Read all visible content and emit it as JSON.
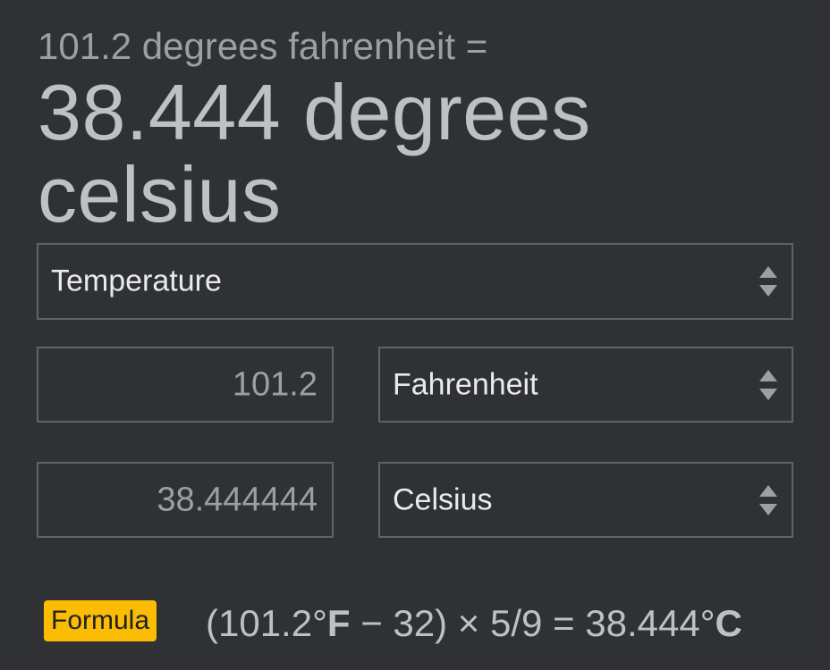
{
  "header": {
    "subtitle": "101.2 degrees fahrenheit =",
    "result_line1": "38.444 degrees",
    "result_line2": "celsius"
  },
  "unit_type": {
    "selected": "Temperature",
    "icon": "updown-arrows-icon"
  },
  "from": {
    "value": "101.2",
    "unit": "Fahrenheit"
  },
  "to": {
    "value": "38.444444",
    "unit": "Celsius"
  },
  "formula": {
    "badge": "Formula",
    "prefix": "(101.2°",
    "unit_f": "F",
    "middle": " − 32) × 5/9 = 38.444°",
    "unit_c": "C"
  },
  "colors": {
    "background": "#303134",
    "badge": "#fbbc04",
    "border": "#5f6368"
  }
}
